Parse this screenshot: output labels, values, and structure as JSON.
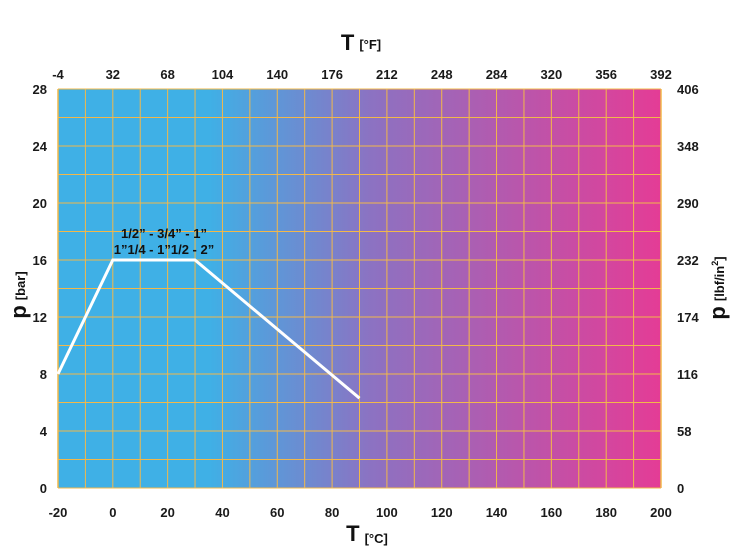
{
  "chart_data": {
    "type": "line",
    "series": [
      {
        "x": [
          -20,
          0,
          30,
          90
        ],
        "y": [
          8,
          16,
          16,
          6.3
        ]
      }
    ],
    "annotation": [
      "1/2” - 3/4” - 1”",
      "1”1/4 - 1”1/2 - 2”"
    ],
    "xlabel": {
      "symbol": "T",
      "unit": "[°C]"
    },
    "x2label": {
      "symbol": "T",
      "unit": "[°F]"
    },
    "ylabel": {
      "symbol": "p",
      "unit": "[bar]"
    },
    "y2label": {
      "symbol": "p",
      "unit": "[lbf/in",
      "unit_sup": "2",
      "unit_end": "]"
    },
    "xlim": [
      -20,
      200
    ],
    "ylim": [
      0,
      28
    ],
    "x_ticks": [
      "-20",
      "0",
      "20",
      "40",
      "60",
      "80",
      "100",
      "120",
      "140",
      "160",
      "180",
      "200"
    ],
    "x2_ticks": [
      "-4",
      "32",
      "68",
      "104",
      "140",
      "176",
      "212",
      "248",
      "284",
      "320",
      "356",
      "392"
    ],
    "y_ticks": [
      "0",
      "4",
      "8",
      "12",
      "16",
      "20",
      "24",
      "28"
    ],
    "y2_ticks": [
      "0",
      "58",
      "116",
      "174",
      "232",
      "290",
      "348",
      "406"
    ],
    "grid": true,
    "colors": {
      "background_left": "#3fb0e6",
      "background_mid": "#8c72c2",
      "background_right": "#e43c96",
      "grid": "#f2b84a",
      "line": "#ffffff"
    }
  }
}
